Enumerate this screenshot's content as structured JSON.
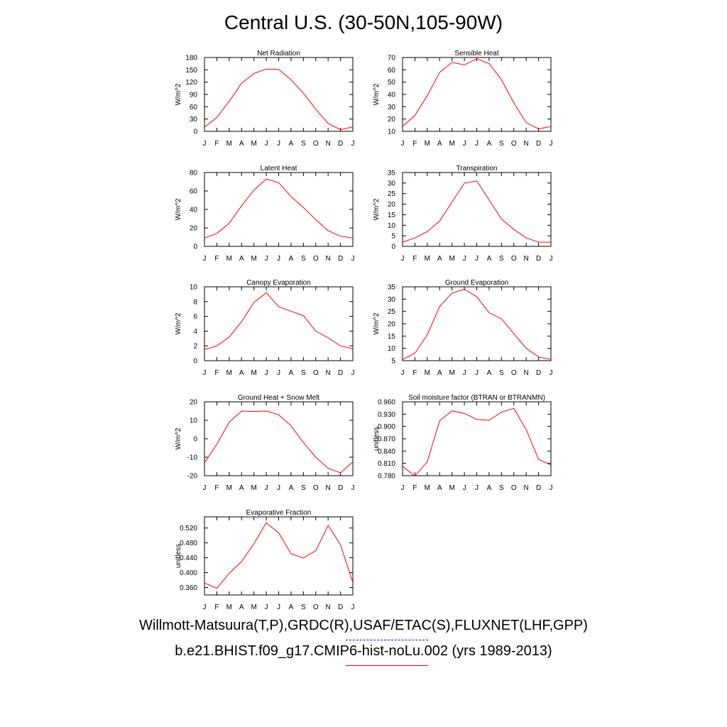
{
  "title": "Central U.S. (30-50N,105-90W)",
  "legend": {
    "obs_label": "Willmott-Matsuura(T,P),GRDC(R),USAF/ETAC(S),FLUXNET(LHF,GPP)",
    "model_label": "b.e21.BHIST.f09_g17.CMIP6-hist-noLu.002 (yrs 1989-2013)",
    "obs_color": "#0000ff",
    "model_color": "#ff0000"
  },
  "chart_data": [
    {
      "type": "line",
      "title": "Net Radiation",
      "ylabel": "W/m^2",
      "x": [
        "J",
        "F",
        "M",
        "A",
        "M",
        "J",
        "J",
        "A",
        "S",
        "O",
        "N",
        "D",
        "J"
      ],
      "ylim": [
        0,
        180
      ],
      "yticks": [
        "0",
        "30",
        "60",
        "90",
        "120",
        "150",
        "180"
      ],
      "series": [
        {
          "color": "#ff0000",
          "values": [
            10,
            34,
            73,
            117,
            141,
            152,
            151,
            126,
            93,
            54,
            19,
            4,
            11
          ]
        }
      ]
    },
    {
      "type": "line",
      "title": "Sensible Heat",
      "ylabel": "W/m^2",
      "x": [
        "J",
        "F",
        "M",
        "A",
        "M",
        "J",
        "J",
        "A",
        "S",
        "O",
        "N",
        "D",
        "J"
      ],
      "ylim": [
        10,
        70
      ],
      "yticks": [
        "10",
        "20",
        "30",
        "40",
        "50",
        "60",
        "70"
      ],
      "series": [
        {
          "color": "#ff0000",
          "values": [
            14,
            23,
            39,
            58,
            66,
            64,
            69,
            65,
            52,
            33,
            17,
            12,
            14
          ]
        }
      ]
    },
    {
      "type": "line",
      "title": "Latent Heat",
      "ylabel": "W/m^2",
      "x": [
        "J",
        "F",
        "M",
        "A",
        "M",
        "J",
        "J",
        "A",
        "S",
        "O",
        "N",
        "D",
        "J"
      ],
      "ylim": [
        0,
        80
      ],
      "yticks": [
        "0",
        "20",
        "40",
        "60",
        "80"
      ],
      "series": [
        {
          "color": "#ff0000",
          "values": [
            9,
            14,
            25,
            44,
            61,
            73,
            69,
            54,
            42,
            29,
            17,
            11,
            9
          ]
        }
      ]
    },
    {
      "type": "line",
      "title": "Transpiration",
      "ylabel": "W/m^2",
      "x": [
        "J",
        "F",
        "M",
        "A",
        "M",
        "J",
        "J",
        "A",
        "S",
        "O",
        "N",
        "D",
        "J"
      ],
      "ylim": [
        0,
        35
      ],
      "yticks": [
        "0",
        "5",
        "10",
        "15",
        "20",
        "25",
        "30",
        "35"
      ],
      "series": [
        {
          "color": "#ff0000",
          "values": [
            2,
            4,
            7,
            12,
            21,
            30,
            31,
            22,
            13,
            8,
            4,
            2,
            2
          ]
        }
      ]
    },
    {
      "type": "line",
      "title": "Canopy Evaporation",
      "ylabel": "W/m^2",
      "x": [
        "J",
        "F",
        "M",
        "A",
        "M",
        "J",
        "J",
        "A",
        "S",
        "O",
        "N",
        "D",
        "J"
      ],
      "ylim": [
        0,
        10
      ],
      "yticks": [
        "0",
        "2",
        "4",
        "6",
        "8",
        "10"
      ],
      "series": [
        {
          "color": "#ff0000",
          "values": [
            1.5,
            2.0,
            3.2,
            5.3,
            7.9,
            9.2,
            7.3,
            6.7,
            6.1,
            4.0,
            3.1,
            2.0,
            1.6
          ]
        }
      ]
    },
    {
      "type": "line",
      "title": "Ground Evaporation",
      "ylabel": "W/m^2",
      "x": [
        "J",
        "F",
        "M",
        "A",
        "M",
        "J",
        "J",
        "A",
        "S",
        "O",
        "N",
        "D",
        "J"
      ],
      "ylim": [
        5,
        35
      ],
      "yticks": [
        "5",
        "10",
        "15",
        "20",
        "25",
        "30",
        "35"
      ],
      "series": [
        {
          "color": "#ff0000",
          "values": [
            5.5,
            8,
            15.5,
            27,
            32.5,
            34,
            31,
            24.5,
            22,
            16,
            10,
            6.5,
            5.5
          ]
        }
      ]
    },
    {
      "type": "line",
      "title": "Ground Heat + Snow Melt",
      "ylabel": "W/m^2",
      "x": [
        "J",
        "F",
        "M",
        "A",
        "M",
        "J",
        "J",
        "A",
        "S",
        "O",
        "N",
        "D",
        "J"
      ],
      "ylim": [
        -20,
        20
      ],
      "yticks": [
        "-20",
        "-10",
        "0",
        "10",
        "20"
      ],
      "series": [
        {
          "color": "#ff0000",
          "values": [
            -13,
            -3,
            9,
            15,
            14.8,
            15,
            13,
            7,
            -2,
            -10,
            -16,
            -18.5,
            -12.5
          ]
        }
      ]
    },
    {
      "type": "line",
      "title": "Soil moisture factor (BTRAN or BTRANMN)",
      "ylabel": "unitless",
      "x": [
        "J",
        "F",
        "M",
        "A",
        "M",
        "J",
        "J",
        "A",
        "S",
        "O",
        "N",
        "D",
        "J"
      ],
      "ylim": [
        0.78,
        0.96
      ],
      "yticks": [
        "0.780",
        "0.810",
        "0.840",
        "0.870",
        "0.900",
        "0.930",
        "0.960"
      ],
      "series": [
        {
          "color": "#ff0000",
          "values": [
            0.803,
            0.779,
            0.814,
            0.914,
            0.938,
            0.932,
            0.917,
            0.915,
            0.935,
            0.944,
            0.892,
            0.82,
            0.806
          ]
        }
      ]
    },
    {
      "type": "line",
      "title": "Evaporative Fraction",
      "ylabel": "unitless",
      "x": [
        "J",
        "F",
        "M",
        "A",
        "M",
        "J",
        "J",
        "A",
        "S",
        "O",
        "N",
        "D",
        "J"
      ],
      "ylim": [
        0.34,
        0.55
      ],
      "yticks": [
        "0.360",
        "0.400",
        "0.440",
        "0.480",
        "0.520"
      ],
      "yticks_values": [
        0.36,
        0.4,
        0.44,
        0.48,
        0.52
      ],
      "series": [
        {
          "color": "#ff0000",
          "values": [
            0.372,
            0.358,
            0.398,
            0.43,
            0.478,
            0.534,
            0.507,
            0.451,
            0.439,
            0.459,
            0.527,
            0.475,
            0.373
          ]
        }
      ]
    }
  ]
}
